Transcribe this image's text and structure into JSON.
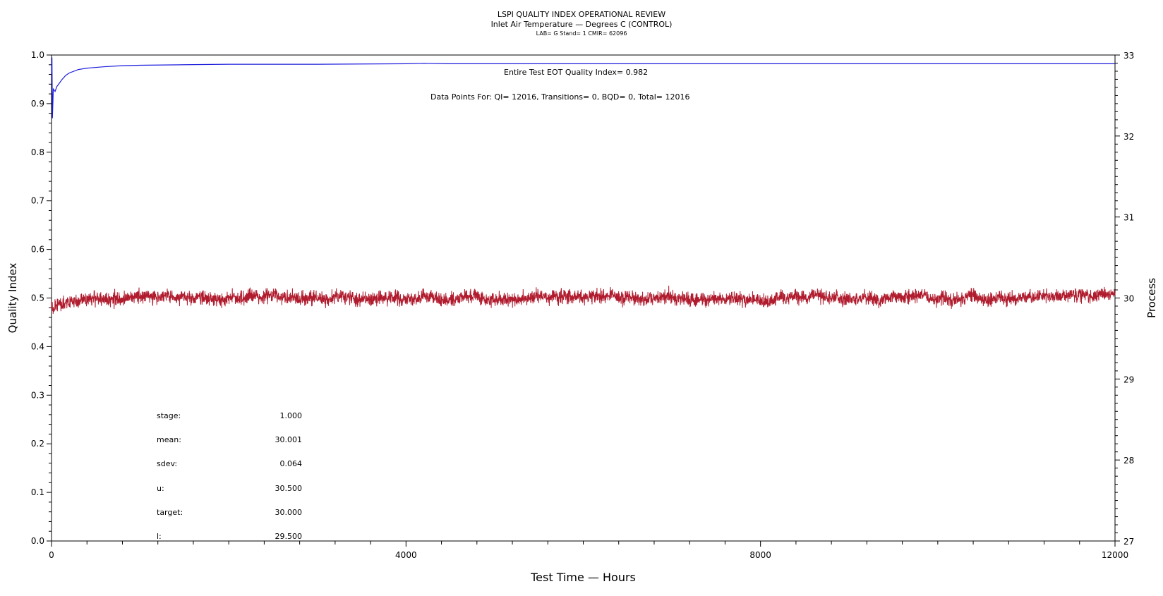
{
  "header": {
    "title": "LSPI QUALITY INDEX OPERATIONAL REVIEW",
    "subtitle": "Inlet Air Temperature — Degrees C (CONTROL)",
    "info": "LAB= G Stand= 1 CMIR= 62096"
  },
  "annotations": {
    "quality_index": "Entire Test EOT Quality Index=   0.982",
    "data_points": "Data Points For: QI= 12016, Transitions=     0, BQD=     0, Total= 12016"
  },
  "stats": [
    {
      "label": "stage:",
      "value": "1.000"
    },
    {
      "label": "mean:",
      "value": "30.001"
    },
    {
      "label": "sdev:",
      "value": "0.064"
    },
    {
      "label": "u:",
      "value": "30.500"
    },
    {
      "label": "target:",
      "value": "30.000"
    },
    {
      "label": "l:",
      "value": "29.500"
    }
  ],
  "colors": {
    "quality_index": "#1a1adc",
    "process": "#b01c2e"
  },
  "chart_data": {
    "type": "line",
    "title": "LSPI QUALITY INDEX OPERATIONAL REVIEW",
    "xlabel": "Test Time — Hours",
    "ylabel": "Quality Index",
    "y2label": "Process",
    "xlim": [
      0,
      12000
    ],
    "ylim": [
      0,
      1
    ],
    "y2lim": [
      27,
      33
    ],
    "xticks": [
      "0",
      "4000",
      "8000",
      "12000"
    ],
    "yticks": [
      "0.0",
      "0.1",
      "0.2",
      "0.3",
      "0.4",
      "0.5",
      "0.6",
      "0.7",
      "0.8",
      "0.9",
      "1.0"
    ],
    "y2ticks": [
      "27",
      "28",
      "29",
      "30",
      "31",
      "32",
      "33"
    ],
    "grid": false,
    "series": [
      {
        "axis": "left",
        "x": [
          0,
          5,
          10,
          20,
          40,
          60,
          80,
          120,
          160,
          200,
          300,
          400,
          600,
          800,
          1000,
          1500,
          2000,
          3000,
          4000,
          4200,
          4500,
          6000,
          8000,
          10000,
          12000
        ],
        "values": [
          0.96,
          0.995,
          0.87,
          0.93,
          0.925,
          0.935,
          0.94,
          0.95,
          0.958,
          0.963,
          0.97,
          0.973,
          0.976,
          0.978,
          0.979,
          0.98,
          0.981,
          0.981,
          0.982,
          0.983,
          0.982,
          0.982,
          0.982,
          0.982,
          0.982
        ]
      },
      {
        "axis": "right",
        "x": [
          0,
          500,
          1000,
          1500,
          2000,
          2500,
          3000,
          3500,
          4000,
          4500,
          5000,
          5500,
          6000,
          6500,
          7000,
          7500,
          8000,
          8500,
          9000,
          9500,
          10000,
          10500,
          11000,
          11500,
          12000
        ],
        "values": [
          29.9,
          30.0,
          30.0,
          30.0,
          30.0,
          30.0,
          30.0,
          30.0,
          30.0,
          30.0,
          30.0,
          30.0,
          30.0,
          30.0,
          30.0,
          30.0,
          30.0,
          30.0,
          30.0,
          30.0,
          30.0,
          30.0,
          30.0,
          30.0,
          30.0
        ],
        "spread": 0.1
      }
    ]
  }
}
